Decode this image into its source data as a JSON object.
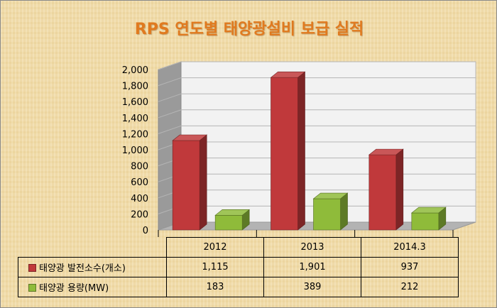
{
  "chart_data": {
    "type": "bar",
    "title": "RPS 연도별 태양광설비 보급 실적",
    "categories": [
      "2012",
      "2013",
      "2014.3"
    ],
    "series": [
      {
        "name": "태양광 발전소수(개소)",
        "values": [
          1115,
          1901,
          937
        ],
        "labels": [
          "1,115",
          "1,901",
          "937"
        ],
        "color": "#c0393b"
      },
      {
        "name": "태양광 용량(MW)",
        "values": [
          183,
          389,
          212
        ],
        "labels": [
          "183",
          "389",
          "212"
        ],
        "color": "#8fbb3a"
      }
    ],
    "ylim": [
      0,
      2000
    ],
    "yticks": [
      "0",
      "200",
      "400",
      "600",
      "800",
      "1,000",
      "1,200",
      "1,400",
      "1,600",
      "1,800",
      "2,000"
    ],
    "grid": true,
    "style": "3d-clustered-column",
    "legend": "data-table"
  }
}
